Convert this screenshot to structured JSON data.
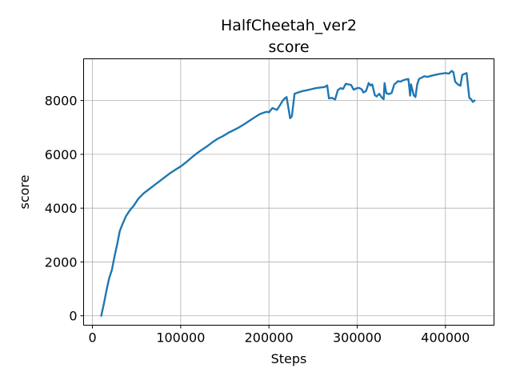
{
  "chart_data": {
    "type": "line",
    "title": "HalfCheetah_ver2",
    "subtitle": "score",
    "xlabel": "Steps",
    "ylabel": "score",
    "xlim": [
      -10000,
      455000
    ],
    "ylim": [
      -350,
      9550
    ],
    "xticks": [
      0,
      100000,
      200000,
      300000,
      400000
    ],
    "xtick_labels": [
      "0",
      "100000",
      "200000",
      "300000",
      "400000"
    ],
    "yticks": [
      0,
      2000,
      4000,
      6000,
      8000
    ],
    "ytick_labels": [
      "0",
      "2000",
      "4000",
      "6000",
      "8000"
    ],
    "grid": true,
    "legend": "none",
    "series": [
      {
        "color": "#1f77b4",
        "x": [
          10000,
          13000,
          16000,
          19000,
          22000,
          25000,
          28000,
          31000,
          34000,
          38000,
          42000,
          47000,
          52000,
          58000,
          64000,
          70000,
          76000,
          82000,
          88000,
          94000,
          100000,
          106000,
          112000,
          118000,
          124000,
          130000,
          136000,
          142000,
          148000,
          154000,
          160000,
          166000,
          172000,
          178000,
          184000,
          190000,
          195000,
          198000,
          200000,
          204000,
          209000,
          212000,
          215000,
          217000,
          220000,
          224000,
          226000,
          229000,
          233000,
          238000,
          243000,
          248000,
          253000,
          258000,
          263000,
          266000,
          268000,
          271000,
          275000,
          278000,
          281000,
          284000,
          287000,
          290000,
          293000,
          296000,
          299000,
          302000,
          305000,
          307000,
          310000,
          313000,
          315000,
          317000,
          320000,
          322000,
          325000,
          328000,
          330000,
          331000,
          333000,
          336000,
          339000,
          342000,
          344000,
          346000,
          349000,
          352000,
          355000,
          358000,
          360000,
          361000,
          364000,
          366000,
          368000,
          370000,
          373000,
          376000,
          380000,
          384000,
          388000,
          392000,
          396000,
          400000,
          404000,
          407000,
          409000,
          411000,
          414000,
          417000,
          419000,
          421000,
          424000,
          427000,
          429000,
          431000,
          433000
        ],
        "y": [
          0,
          450,
          950,
          1400,
          1700,
          2200,
          2650,
          3150,
          3400,
          3700,
          3900,
          4100,
          4350,
          4550,
          4700,
          4850,
          5000,
          5150,
          5300,
          5430,
          5550,
          5700,
          5870,
          6030,
          6170,
          6300,
          6450,
          6580,
          6680,
          6800,
          6900,
          7000,
          7120,
          7250,
          7380,
          7500,
          7560,
          7580,
          7560,
          7720,
          7650,
          7800,
          7960,
          8050,
          8130,
          7340,
          7420,
          8250,
          8300,
          8350,
          8380,
          8420,
          8460,
          8480,
          8500,
          8560,
          8080,
          8100,
          8040,
          8380,
          8460,
          8430,
          8620,
          8600,
          8580,
          8400,
          8450,
          8470,
          8420,
          8300,
          8350,
          8650,
          8560,
          8600,
          8200,
          8150,
          8250,
          8100,
          8050,
          8650,
          8270,
          8240,
          8280,
          8600,
          8650,
          8720,
          8700,
          8750,
          8780,
          8800,
          8180,
          8600,
          8200,
          8130,
          8600,
          8800,
          8850,
          8900,
          8880,
          8920,
          8950,
          8980,
          9000,
          9020,
          9000,
          9100,
          9050,
          8700,
          8600,
          8550,
          8950,
          8980,
          9020,
          8100,
          8050,
          7950,
          8000
        ]
      }
    ]
  }
}
